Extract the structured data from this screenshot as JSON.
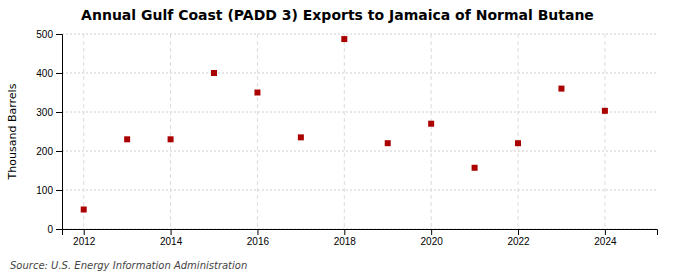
{
  "chart_data": {
    "type": "scatter",
    "title": "Annual Gulf Coast (PADD 3) Exports to Jamaica of Normal Butane",
    "ylabel": "Thousand Barrels",
    "source": "Source: U.S. Energy Information Administration",
    "x": [
      2012,
      2013,
      2014,
      2015,
      2016,
      2017,
      2018,
      2019,
      2020,
      2021,
      2022,
      2023,
      2024
    ],
    "values": [
      50,
      230,
      230,
      400,
      350,
      235,
      487,
      220,
      270,
      157,
      220,
      360,
      303
    ],
    "color": "#aa0000",
    "marker": "square",
    "xlim": [
      2011.5,
      2025.2
    ],
    "ylim": [
      0,
      500
    ],
    "xticks": [
      2012,
      2014,
      2016,
      2018,
      2020,
      2022,
      2024
    ],
    "yticks": [
      0,
      100,
      200,
      300,
      400,
      500
    ],
    "grid": true
  }
}
